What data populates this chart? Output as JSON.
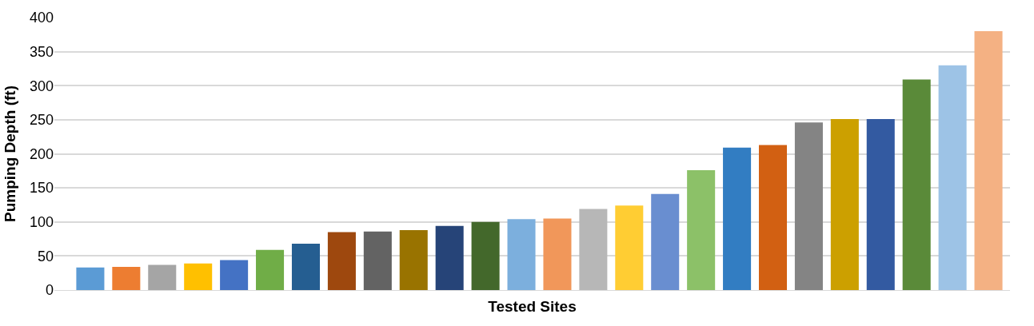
{
  "chart_data": {
    "type": "bar",
    "xlabel": "Tested Sites",
    "ylabel": "Pumping Depth (ft)",
    "categories": [
      null,
      null,
      null,
      null,
      null,
      null,
      null,
      null,
      null,
      null,
      null,
      null,
      null,
      null,
      null,
      null,
      null,
      null,
      null,
      null,
      null,
      null,
      null,
      null,
      null,
      null
    ],
    "values": [
      33,
      34,
      37,
      39,
      44,
      59,
      68,
      85,
      86,
      88,
      94,
      100,
      104,
      105,
      119,
      124,
      141,
      176,
      209,
      213,
      246,
      251,
      251,
      309,
      330,
      380
    ],
    "colors": [
      "#5b9bd5",
      "#ed7d31",
      "#a5a5a5",
      "#ffc000",
      "#4472c4",
      "#70ad47",
      "#255e91",
      "#9e480e",
      "#636363",
      "#997300",
      "#264478",
      "#43682b",
      "#7cafdd",
      "#f1975a",
      "#b7b7b7",
      "#ffcd33",
      "#698ed0",
      "#8cc168",
      "#327dc2",
      "#d26012",
      "#848484",
      "#cca000",
      "#335aa1",
      "#5a8a39",
      "#9dc3e6",
      "#f4b183"
    ],
    "ylim": [
      0,
      400
    ],
    "yticks": [
      0,
      50,
      100,
      150,
      200,
      250,
      300,
      350,
      400
    ],
    "grid": "y"
  }
}
